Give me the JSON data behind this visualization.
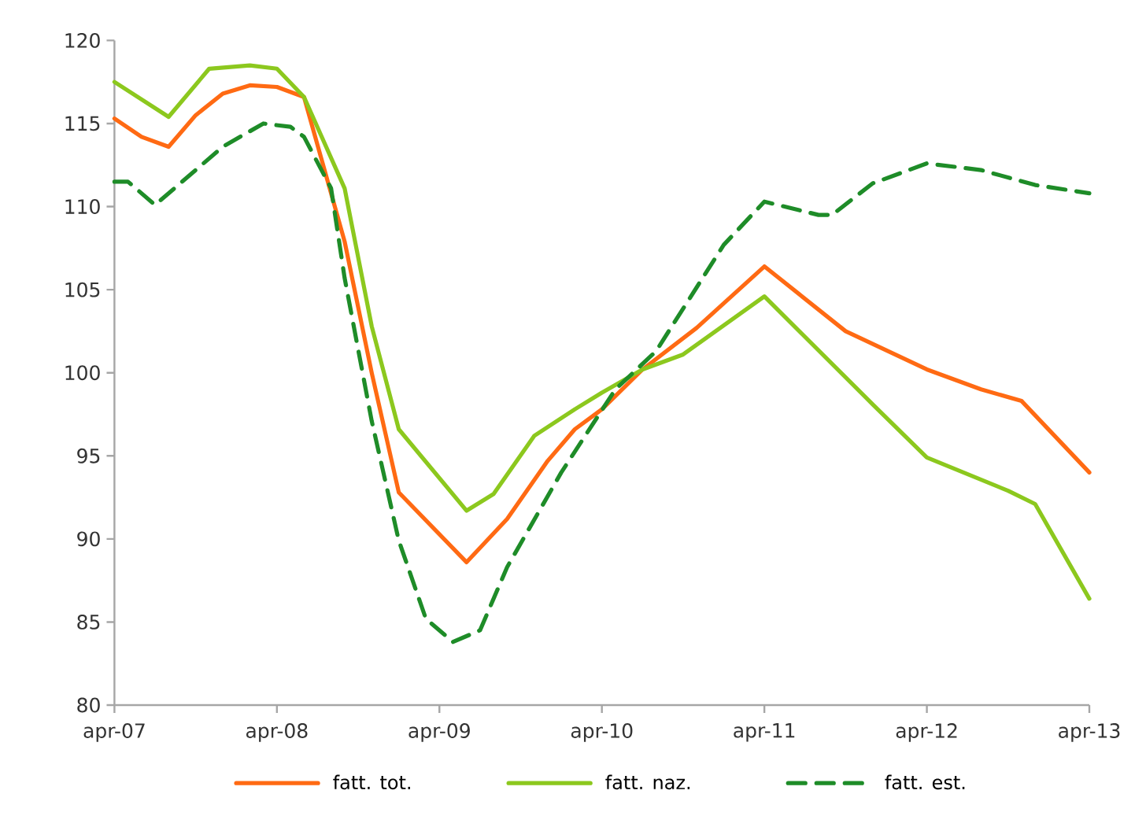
{
  "chart_data": {
    "type": "line",
    "legend": "bottom",
    "xlim": [
      "2007-04",
      "2013-04"
    ],
    "ylim": [
      80,
      120
    ],
    "xticks": [
      {
        "value": "2007-04",
        "label": "apr-07"
      },
      {
        "value": "2008-04",
        "label": "apr-08"
      },
      {
        "value": "2009-04",
        "label": "apr-09"
      },
      {
        "value": "2010-04",
        "label": "apr-10"
      },
      {
        "value": "2011-04",
        "label": "apr-11"
      },
      {
        "value": "2012-04",
        "label": "apr-12"
      },
      {
        "value": "2013-04",
        "label": "apr-13"
      }
    ],
    "yticks": [
      80,
      85,
      90,
      95,
      100,
      105,
      110,
      115,
      120
    ],
    "series": [
      {
        "name": "fatt. tot.",
        "color": "#ff6a13",
        "line_style": "solid",
        "x": [
          "2007-04",
          "2007-06",
          "2007-08",
          "2007-10",
          "2007-12",
          "2008-02",
          "2008-04",
          "2008-06",
          "2008-09",
          "2008-11",
          "2009-01",
          "2009-06",
          "2009-09",
          "2009-12",
          "2010-02",
          "2010-04",
          "2010-07",
          "2010-11",
          "2011-04",
          "2011-10",
          "2012-04",
          "2012-08",
          "2012-11",
          "2013-04"
        ],
        "values": [
          115.3,
          114.2,
          113.6,
          115.5,
          116.8,
          117.3,
          117.2,
          116.6,
          107.9,
          100.0,
          92.8,
          88.6,
          91.2,
          94.7,
          96.6,
          97.8,
          100.2,
          102.7,
          106.4,
          102.5,
          100.2,
          99.0,
          98.3,
          94.0
        ]
      },
      {
        "name": "fatt. naz.",
        "color": "#8cc81e",
        "line_style": "solid",
        "x": [
          "2007-04",
          "2007-08",
          "2007-11",
          "2008-02",
          "2008-04",
          "2008-06",
          "2008-09",
          "2008-11",
          "2009-01",
          "2009-06",
          "2009-08",
          "2009-11",
          "2010-02",
          "2010-04",
          "2010-07",
          "2010-10",
          "2011-04",
          "2011-12",
          "2012-04",
          "2012-10",
          "2012-12",
          "2013-04"
        ],
        "values": [
          117.5,
          115.4,
          118.3,
          118.5,
          118.3,
          116.6,
          111.1,
          102.8,
          96.6,
          91.7,
          92.7,
          96.2,
          97.8,
          98.8,
          100.2,
          101.1,
          104.6,
          98.1,
          94.9,
          92.9,
          92.1,
          86.4
        ]
      },
      {
        "name": "fatt. est.",
        "color": "#1e8c28",
        "line_style": "dashed",
        "x": [
          "2007-04",
          "2007-05",
          "2007-07",
          "2007-12",
          "2008-03",
          "2008-05",
          "2008-06",
          "2008-08",
          "2008-09",
          "2008-11",
          "2009-01",
          "2009-03",
          "2009-05",
          "2009-07",
          "2009-09",
          "2010-01",
          "2010-05",
          "2010-08",
          "2011-01",
          "2011-04",
          "2011-08",
          "2011-09",
          "2011-12",
          "2012-04",
          "2012-08",
          "2012-12",
          "2013-04"
        ],
        "values": [
          111.5,
          111.5,
          110.1,
          113.6,
          115.0,
          114.8,
          114.2,
          111.1,
          105.7,
          97.1,
          89.9,
          85.2,
          83.8,
          84.5,
          88.3,
          94.0,
          99.0,
          101.3,
          107.7,
          110.3,
          109.5,
          109.5,
          111.4,
          112.6,
          112.2,
          111.3,
          110.8
        ]
      }
    ]
  }
}
